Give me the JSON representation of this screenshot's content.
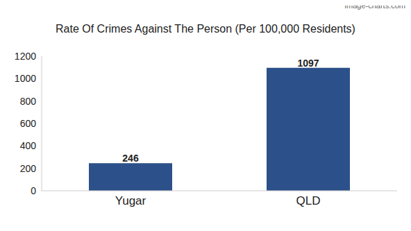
{
  "chart_data": {
    "type": "bar",
    "title": "Rate Of Crimes Against The Person (Per 100,000 Residents)",
    "annotations": [
      "image-charts.com"
    ],
    "categories": [
      "Yugar",
      "QLD"
    ],
    "values": [
      246,
      1097
    ],
    "color": "#2c5089",
    "ylim": [
      0,
      1200
    ],
    "yticks": [
      0,
      200,
      400,
      600,
      800,
      1000,
      1200
    ],
    "grid": false,
    "data_labels": true
  }
}
